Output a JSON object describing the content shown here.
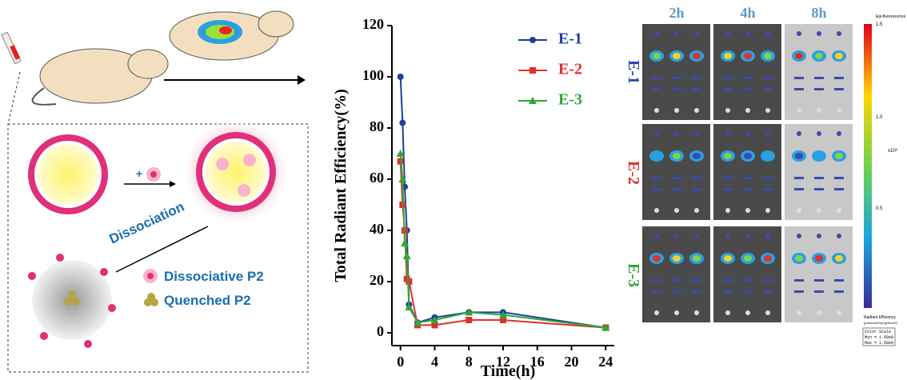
{
  "diagram": {
    "plus": "+",
    "dissociation": "Dissociation",
    "legend_dissociative": "Dissociative P2",
    "legend_quenched": "Quenched P2"
  },
  "chart_data": {
    "type": "line",
    "x": [
      0,
      0.25,
      0.5,
      0.75,
      1,
      2,
      4,
      8,
      12,
      24
    ],
    "series": [
      {
        "name": "E-1",
        "color": "#1f3f9e",
        "marker": "circle",
        "values": [
          100,
          82,
          57,
          40,
          11,
          4,
          6,
          8,
          8,
          2
        ]
      },
      {
        "name": "E-2",
        "color": "#e0302a",
        "marker": "square",
        "values": [
          67,
          50,
          40,
          21,
          20,
          3,
          3,
          5,
          5,
          2
        ]
      },
      {
        "name": "E-3",
        "color": "#2ea836",
        "marker": "triangle",
        "values": [
          70,
          60,
          35,
          30,
          10,
          4,
          5,
          8,
          7,
          2
        ]
      }
    ],
    "xlabel": "Time(h)",
    "ylabel": "Total Radiant Efficiency(%)",
    "xlim": [
      -1,
      25
    ],
    "ylim": [
      -5,
      120
    ],
    "xticks": [
      0,
      4,
      8,
      12,
      16,
      20,
      24
    ],
    "yticks": [
      0,
      20,
      40,
      60,
      80,
      100,
      120
    ],
    "legend": "upper right"
  },
  "imaging": {
    "columns": [
      "2h",
      "4h",
      "8h"
    ],
    "rows": [
      "E-1",
      "E-2",
      "E-3"
    ],
    "colorbar": {
      "title": "Epi-fluorescence",
      "ticks": [
        "1.5",
        "1.0",
        "0.5"
      ],
      "exponent": "x10⁹",
      "unit": "Radiant Efficiency",
      "unit2": "(p/sec/cm²/sr)/(µW/cm²)",
      "scale": "Color Scale",
      "min": "Min = 1.50e8",
      "max": "Max = 1.50e9"
    }
  }
}
